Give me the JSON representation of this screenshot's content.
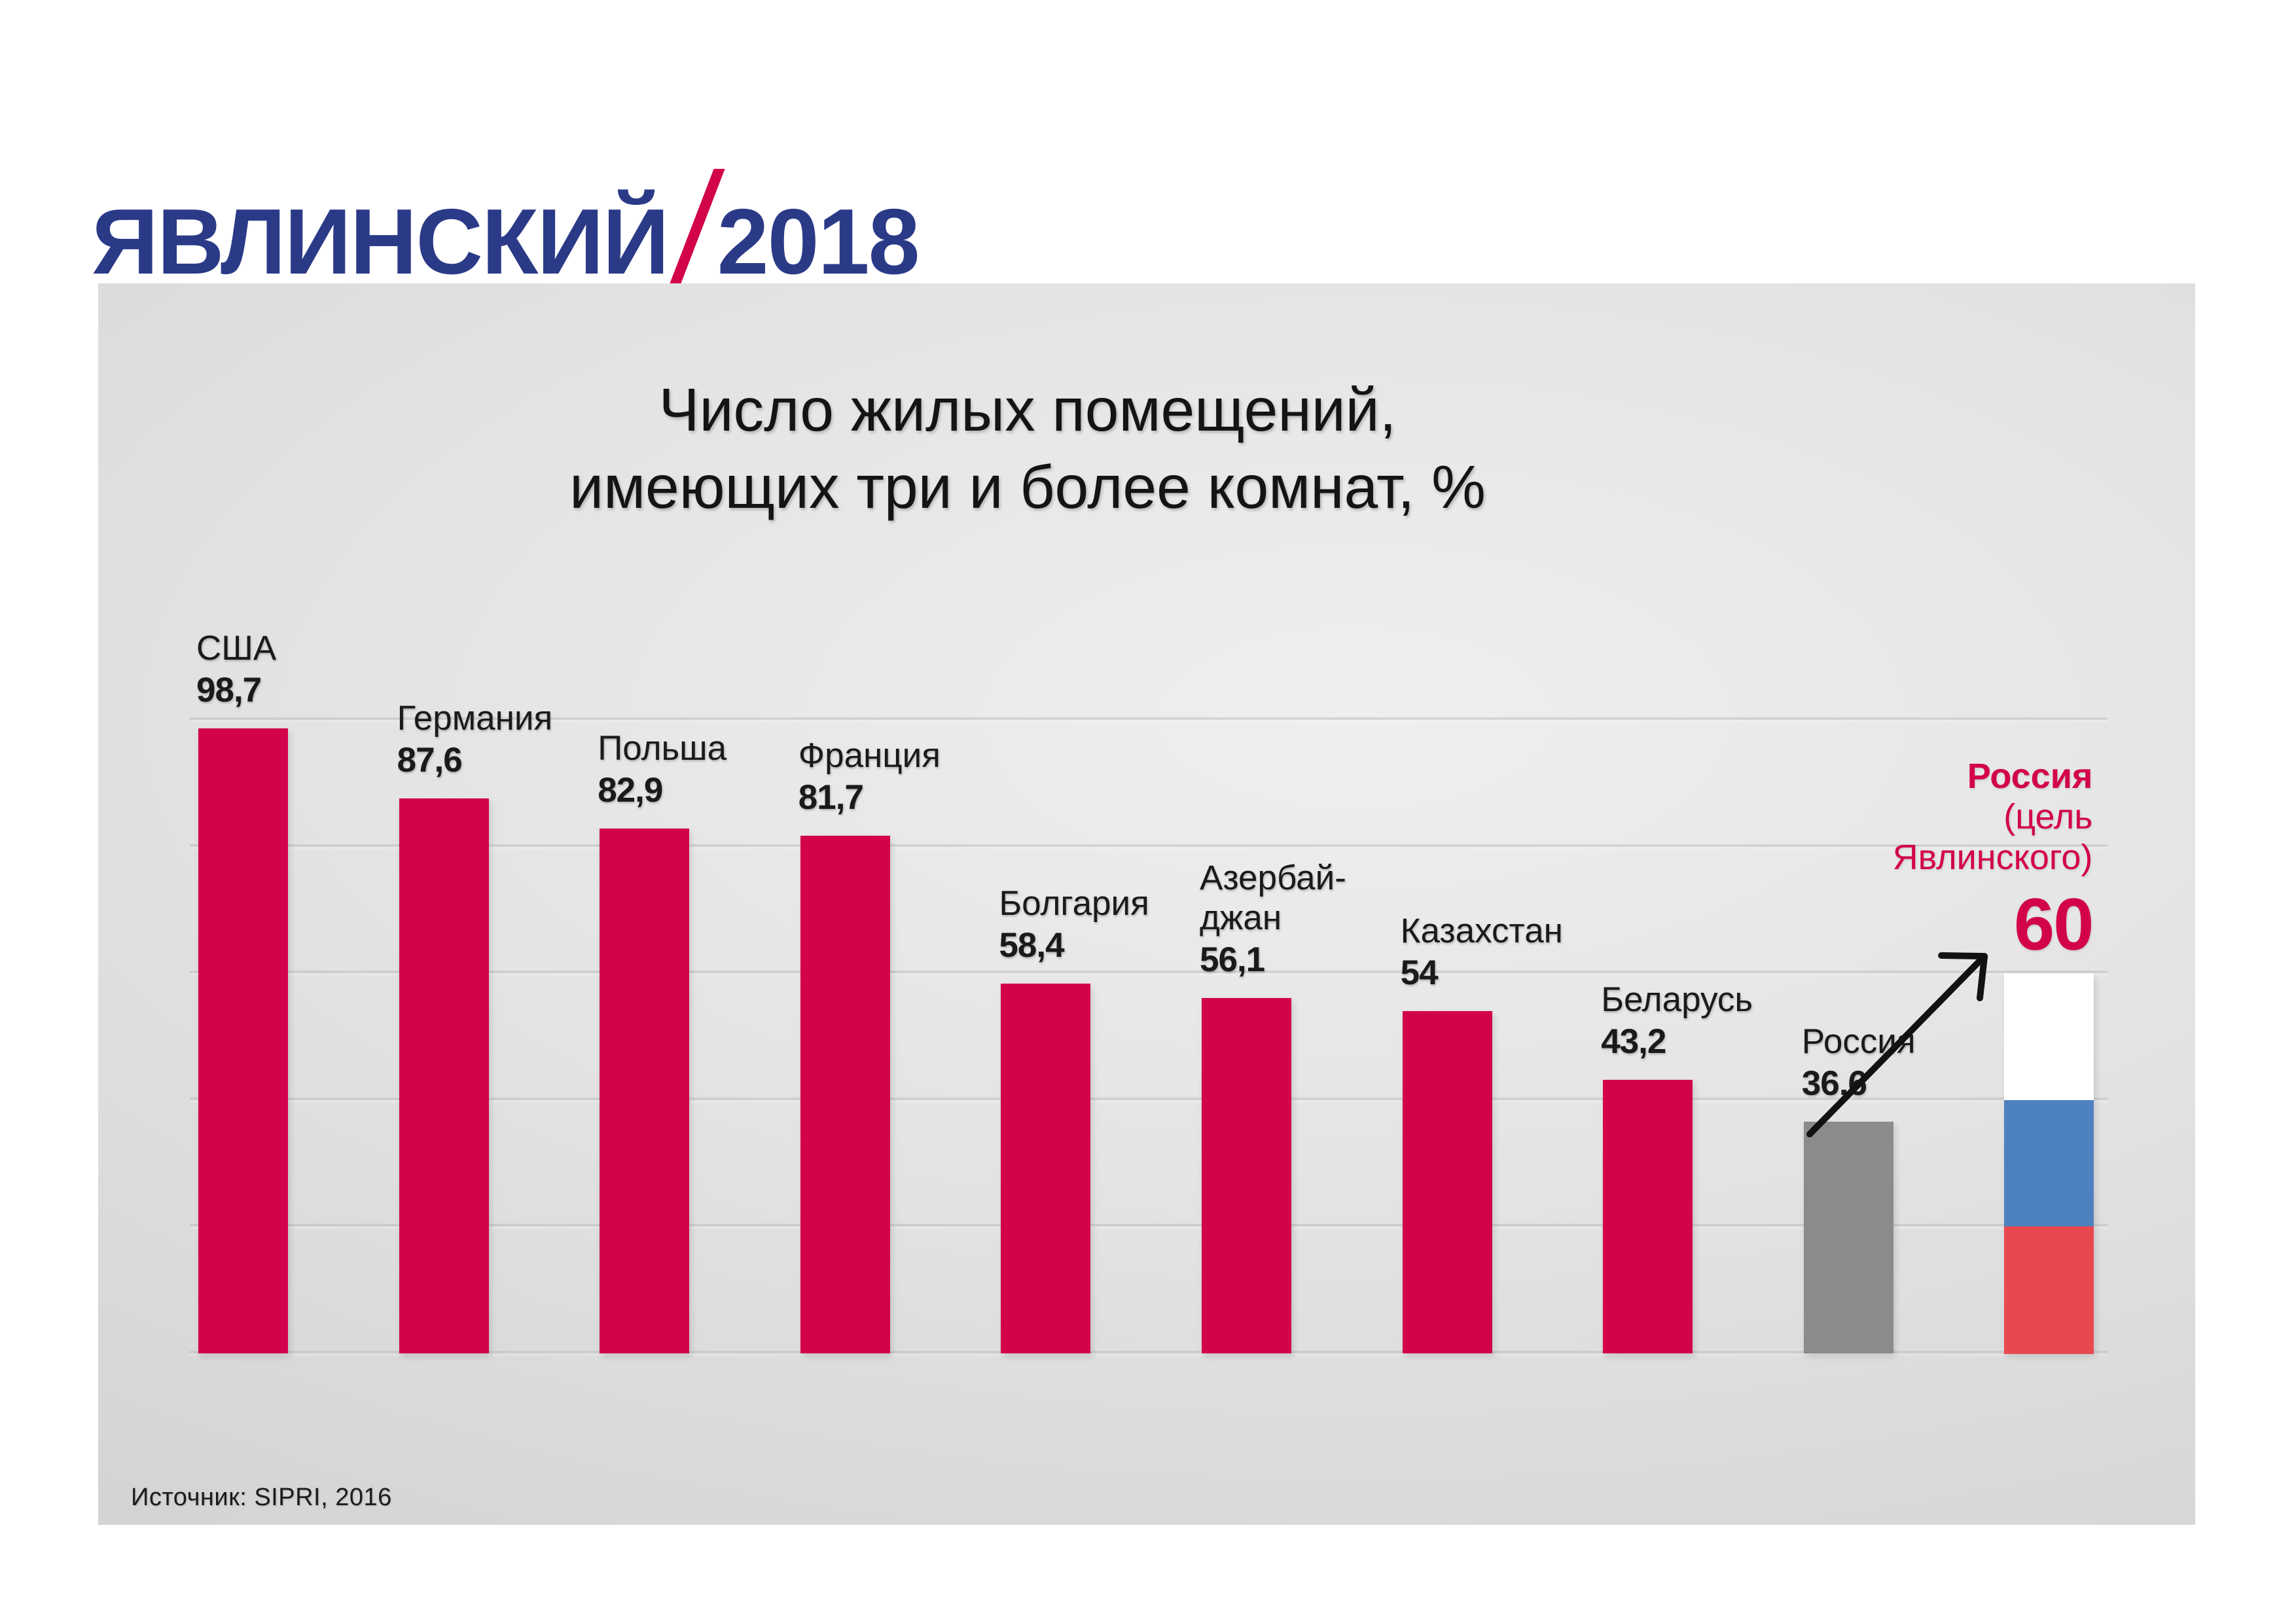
{
  "logo": {
    "name": "ЯВЛИНСКИЙ",
    "slash": "/",
    "year": "2018"
  },
  "colors": {
    "logo_blue": "#2b3a87",
    "accent_crimson": "#d2024b",
    "bar_gray": "#8b8b8b",
    "flag_white": "#ffffff",
    "flag_blue": "#4e81bf",
    "flag_red": "#e8494f",
    "panel_gray": "#d9d9d9",
    "text_dark": "#1a1a1a"
  },
  "chart_data": {
    "type": "bar",
    "title": "Число жилых помещений, имеющих три и более комнат, %",
    "title_lines": [
      "Число жилых помещений,",
      "имеющих три и более комнат, %"
    ],
    "categories": [
      "США",
      "Германия",
      "Польша",
      "Франция",
      "Болгария",
      "Азербайджан",
      "Казахстан",
      "Беларусь",
      "Россия",
      "Россия (цель Явлинского)"
    ],
    "values": [
      98.7,
      87.6,
      82.9,
      81.7,
      58.4,
      56.1,
      54,
      43.2,
      36.6,
      60
    ],
    "xlabel": "",
    "ylabel": "",
    "ylim": [
      0,
      100
    ],
    "grid": "horizontal, every 20",
    "legend": "none",
    "source": "Источник: SIPRI, 2016",
    "bars": [
      {
        "label_lines": [
          "США"
        ],
        "value_label": "98,7",
        "value": 98.7,
        "style": "crimson"
      },
      {
        "label_lines": [
          "Германия"
        ],
        "value_label": "87,6",
        "value": 87.6,
        "style": "crimson"
      },
      {
        "label_lines": [
          "Польша"
        ],
        "value_label": "82,9",
        "value": 82.9,
        "style": "crimson"
      },
      {
        "label_lines": [
          "Франция"
        ],
        "value_label": "81,7",
        "value": 81.7,
        "style": "crimson"
      },
      {
        "label_lines": [
          "Болгария"
        ],
        "value_label": "58,4",
        "value": 58.4,
        "style": "crimson"
      },
      {
        "label_lines": [
          "Азербай-",
          "джан"
        ],
        "value_label": "56,1",
        "value": 56.1,
        "style": "crimson"
      },
      {
        "label_lines": [
          "Казахстан"
        ],
        "value_label": "54",
        "value": 54,
        "style": "crimson"
      },
      {
        "label_lines": [
          "Беларусь"
        ],
        "value_label": "43,2",
        "value": 43.2,
        "style": "crimson"
      },
      {
        "label_lines": [
          "Россия"
        ],
        "value_label": "36,6",
        "value": 36.6,
        "style": "gray"
      },
      {
        "label_lines": [
          "Россия",
          "(цель",
          "Явлинского)"
        ],
        "value_label": "60",
        "value": 60,
        "style": "russian-flag"
      }
    ]
  }
}
